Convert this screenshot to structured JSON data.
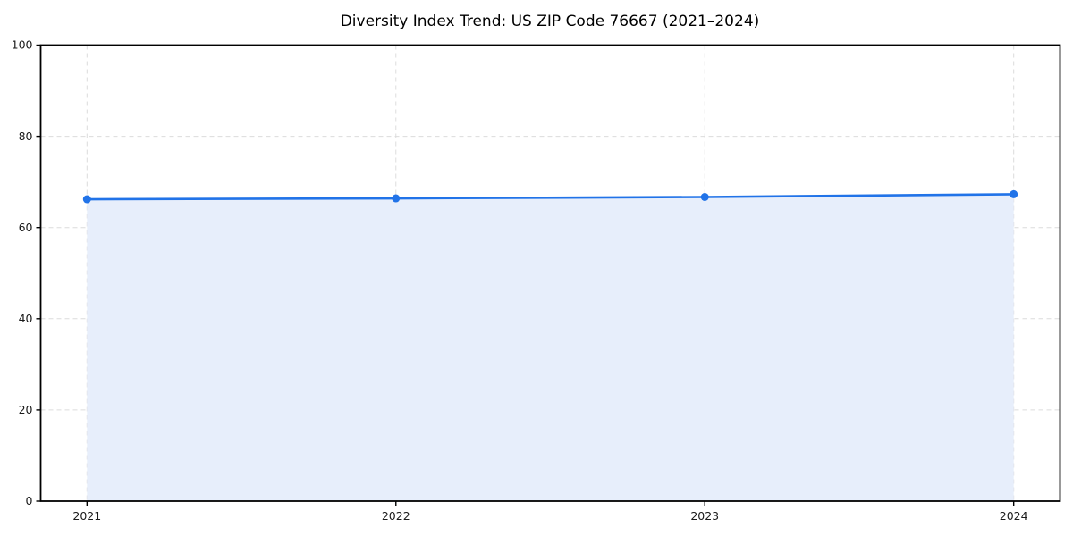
{
  "chart_data": {
    "type": "area",
    "title": "Diversity Index Trend: US ZIP Code 76667 (2021–2024)",
    "x": [
      "2021",
      "2022",
      "2023",
      "2024"
    ],
    "series": [
      {
        "name": "Diversity Index",
        "values": [
          66.2,
          66.4,
          66.7,
          67.3
        ]
      }
    ],
    "xlabel": "",
    "ylabel": "",
    "ylim": [
      0,
      100
    ],
    "yticks": [
      0,
      20,
      40,
      60,
      80,
      100
    ],
    "grid": "dashed-both-axes",
    "legend": "none",
    "marker": "circle",
    "colors": {
      "line": "#2173e8",
      "marker": "#2173e8",
      "area_fill": "#e7eefb",
      "grid": "#dcdcdc",
      "spine": "#000000",
      "tick_label": "#1a1a1a",
      "title": "#000000",
      "background": "#ffffff"
    }
  }
}
